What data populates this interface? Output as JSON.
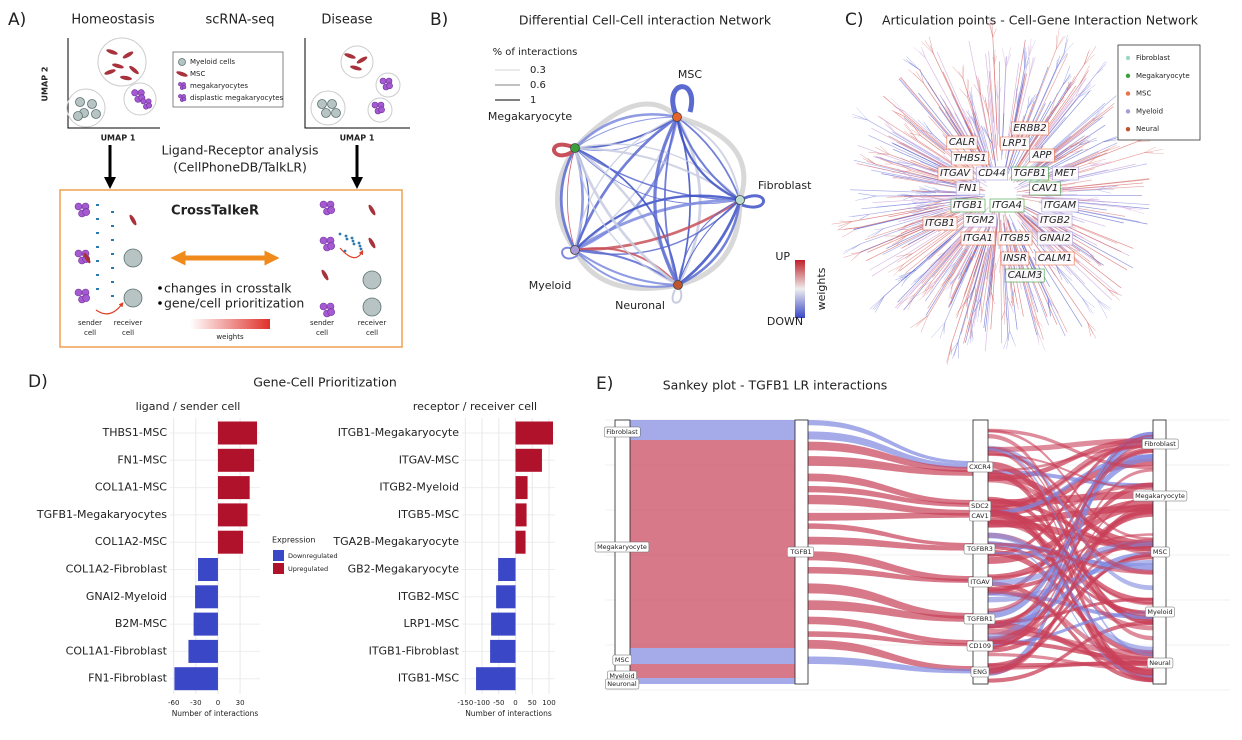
{
  "panel_a": {
    "label": "A)",
    "homeostasis": "Homeostasis",
    "method": "scRNA-seq",
    "disease": "Disease",
    "umap_y": "UMAP 2",
    "umap_x": "UMAP 1",
    "legend": [
      "Myeloid cells",
      "MSC",
      "megakaryocytes",
      "displastic megakaryocytes"
    ],
    "analysis": "Ligand-Receptor analysis",
    "tools": "(CellPhoneDB/TalkLR)",
    "tool_name": "CrossTalkeR",
    "bullets": [
      "changes in crosstalk",
      "gene/cell prioritization"
    ],
    "sender_lines": [
      "sender",
      "cell"
    ],
    "receiver_lines": [
      "receiver",
      "cell"
    ],
    "weights": "weights"
  },
  "panel_b": {
    "label": "B)",
    "title": "Differential Cell-Cell interaction Network",
    "edge_legend_title": "% of interactions",
    "edge_legend": [
      0.3,
      0.6,
      1
    ],
    "nodes": [
      "MSC",
      "Megakaryocyte",
      "Fibroblast",
      "Myeloid",
      "Neuronal"
    ],
    "colorbar": {
      "high": "UP",
      "low": "DOWN",
      "title": "weights"
    }
  },
  "panel_c": {
    "label": "C)",
    "title": "Articulation points - Cell-Gene Interaction Network",
    "legend": [
      {
        "name": "Fibroblast",
        "color": "#9ed6c6"
      },
      {
        "name": "Megakaryocyte",
        "color": "#3aa13a"
      },
      {
        "name": "MSC",
        "color": "#e8734a"
      },
      {
        "name": "Myeloid",
        "color": "#a99bd6"
      },
      {
        "name": "Neural",
        "color": "#c0542c"
      }
    ],
    "genes": [
      {
        "name": "ERBB2",
        "group": "MSC"
      },
      {
        "name": "CALR",
        "group": "MSC"
      },
      {
        "name": "LRP1",
        "group": "MSC"
      },
      {
        "name": "THBS1",
        "group": "MSC"
      },
      {
        "name": "APP",
        "group": "MSC"
      },
      {
        "name": "ITGAV",
        "group": "MSC"
      },
      {
        "name": "CD44",
        "group": "Myeloid"
      },
      {
        "name": "TGFB1",
        "group": "Megakaryocyte"
      },
      {
        "name": "MET",
        "group": "Myeloid"
      },
      {
        "name": "FN1",
        "group": "Myeloid"
      },
      {
        "name": "CAV1",
        "group": "Megakaryocyte"
      },
      {
        "name": "ITGB1",
        "group": "Megakaryocyte"
      },
      {
        "name": "ITGA4",
        "group": "Megakaryocyte"
      },
      {
        "name": "ITGAM",
        "group": "Myeloid"
      },
      {
        "name": "TGM2",
        "group": "Myeloid"
      },
      {
        "name": "ITGB2",
        "group": "Myeloid"
      },
      {
        "name": "ITGB1",
        "group": "MSC"
      },
      {
        "name": "ITGA1",
        "group": "MSC"
      },
      {
        "name": "ITGB5",
        "group": "MSC"
      },
      {
        "name": "GNAI2",
        "group": "Myeloid"
      },
      {
        "name": "INSR",
        "group": "MSC"
      },
      {
        "name": "CALM1",
        "group": "MSC"
      },
      {
        "name": "CALM3",
        "group": "Megakaryocyte"
      }
    ]
  },
  "panel_d": {
    "label": "D)",
    "title": "Gene-Cell Prioritization",
    "x_label": "Number of interactions",
    "legend_title": "Expression",
    "down": {
      "name": "Downregulated",
      "color": "#3a47c6"
    },
    "up": {
      "name": "Upregulated",
      "color": "#b0122b"
    },
    "ligand": {
      "title": "ligand / sender cell",
      "categories": [
        "THBS1-MSC",
        "FN1-MSC",
        "COL1A1-MSC",
        "TGFB1-Megakaryocytes",
        "COL1A2-MSC",
        "COL1A2-Fibroblast",
        "GNAI2-Myeloid",
        "B2M-MSC",
        "COL1A1-Fibroblast",
        "FN1-Fibroblast"
      ],
      "values": [
        53,
        49,
        43,
        40,
        34,
        -27,
        -31,
        -33,
        -40,
        -59
      ],
      "xlim": [
        -65,
        57
      ],
      "xticks": [
        -60,
        -30,
        0,
        30
      ]
    },
    "receptor": {
      "title": "receptor / receiver cell",
      "categories": [
        "ITGB1-Megakaryocyte",
        "ITGAV-MSC",
        "ITGB2-Myeloid",
        "ITGB5-MSC",
        "TGA2B-Megakaryocyte",
        "GB2-Megakaryocyte",
        "ITGB2-MSC",
        "LRP1-MSC",
        "ITGB1-Fibroblast",
        "ITGB1-MSC"
      ],
      "values": [
        112,
        79,
        36,
        33,
        30,
        -52,
        -58,
        -73,
        -76,
        -118
      ],
      "xlim": [
        -160,
        118
      ],
      "xticks": [
        -150,
        -100,
        -50,
        0,
        50,
        100
      ]
    }
  },
  "panel_e": {
    "label": "E)",
    "title": "Sankey plot - TGFB1 LR interactions",
    "senders": [
      "Fibroblast",
      "Megakaryocyte",
      "MSC",
      "Myeloid",
      "Neuronal"
    ],
    "ligand": "TGFB1",
    "receptors": [
      "CXCR4",
      "SDC2",
      "CAV1",
      "TGFBR3",
      "ITGAV",
      "TGFBR1",
      "CD109",
      "ENG"
    ],
    "targets": [
      "Fibroblast",
      "Megakaryocyte",
      "MSC",
      "Myeloid",
      "Neural"
    ]
  }
}
